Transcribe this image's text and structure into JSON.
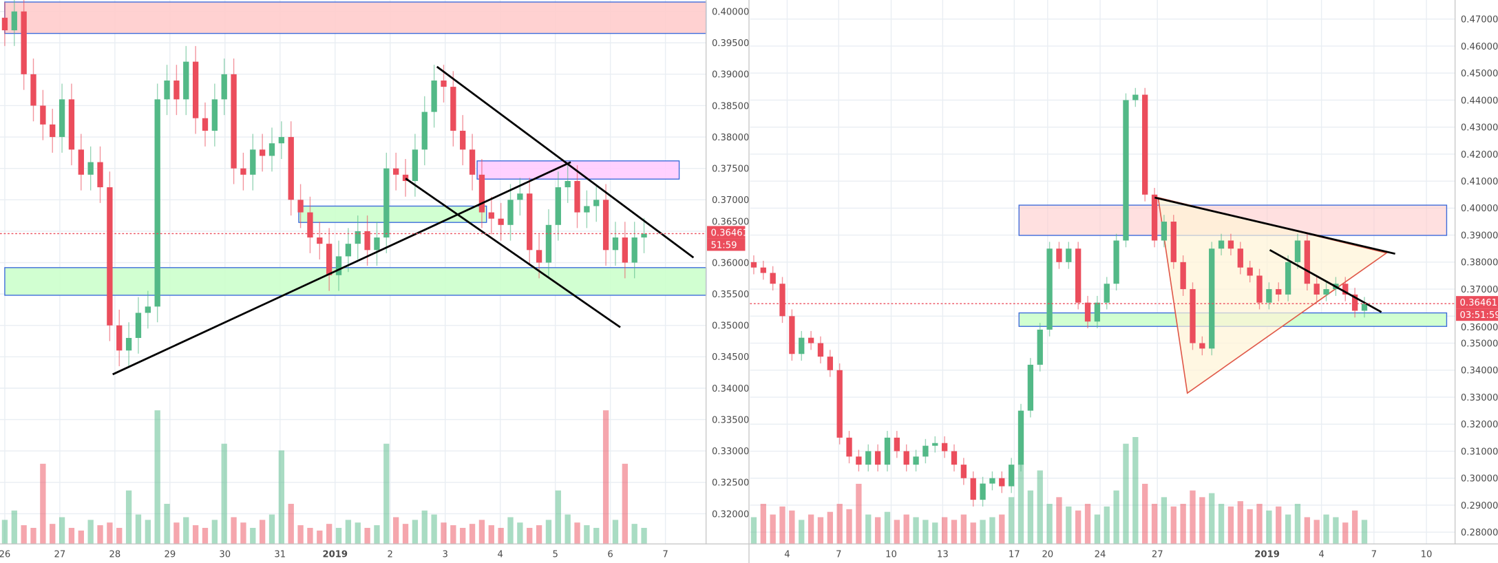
{
  "colors": {
    "up": "#53b987",
    "down": "#eb4d5c",
    "resistance_zone": "#ffcccc",
    "support_zone": "#ccffcc",
    "pink_zone": "#ffccff",
    "zone_border": "#3d6bdb",
    "trendline": "#000000",
    "price_line": "#eb4d5c",
    "triangle_fill": "#fff3d6",
    "triangle_edge": "#e05a4a"
  },
  "chart_data": [
    {
      "type": "candlestick",
      "y_ticks": [
        "0.40000",
        "0.39500",
        "0.39000",
        "0.38500",
        "0.38000",
        "0.37500",
        "0.37000",
        "0.36500",
        "0.36000",
        "0.35500",
        "0.35000",
        "0.34500",
        "0.34000",
        "0.33500",
        "0.33000",
        "0.32500",
        "0.32000"
      ],
      "ylim": [
        0.3155,
        0.4018
      ],
      "x_ticks": [
        "26",
        "27",
        "28",
        "29",
        "30",
        "31",
        "2019",
        "2",
        "3",
        "4",
        "5",
        "6",
        "7"
      ],
      "grid": true,
      "closes": [
        0.397,
        0.4,
        0.39,
        0.385,
        0.382,
        0.38,
        0.386,
        0.378,
        0.374,
        0.376,
        0.372,
        0.35,
        0.346,
        0.348,
        0.352,
        0.353,
        0.386,
        0.389,
        0.386,
        0.392,
        0.383,
        0.381,
        0.386,
        0.39,
        0.375,
        0.374,
        0.378,
        0.377,
        0.379,
        0.38,
        0.37,
        0.368,
        0.364,
        0.363,
        0.358,
        0.361,
        0.363,
        0.365,
        0.362,
        0.364,
        0.375,
        0.374,
        0.373,
        0.378,
        0.384,
        0.389,
        0.388,
        0.381,
        0.378,
        0.374,
        0.368,
        0.367,
        0.366,
        0.37,
        0.371,
        0.362,
        0.36,
        0.366,
        0.372,
        0.373,
        0.368,
        0.369,
        0.37,
        0.362,
        0.364,
        0.36,
        0.364,
        0.3646
      ],
      "volumes": [
        18,
        25,
        14,
        12,
        60,
        15,
        20,
        12,
        10,
        18,
        14,
        16,
        12,
        40,
        22,
        18,
        100,
        30,
        16,
        20,
        14,
        12,
        18,
        75,
        20,
        16,
        12,
        18,
        22,
        70,
        30,
        14,
        12,
        10,
        15,
        12,
        18,
        16,
        12,
        14,
        75,
        20,
        15,
        18,
        25,
        22,
        16,
        14,
        12,
        15,
        18,
        14,
        12,
        20,
        16,
        12,
        14,
        18,
        40,
        22,
        16,
        14,
        12,
        100,
        18,
        60,
        15,
        12
      ],
      "zones": [
        {
          "kind": "resistance",
          "from_day": 0,
          "to_day": 13,
          "top": 0.4015,
          "bottom": 0.3965
        },
        {
          "kind": "support",
          "from_day": 0,
          "to_day": 13,
          "top": 0.3592,
          "bottom": 0.3548
        },
        {
          "kind": "pink",
          "from_day": 8.58,
          "to_day": 12.25,
          "top": 0.3762,
          "bottom": 0.3733
        },
        {
          "kind": "support",
          "from_day": 5.34,
          "to_day": 8.75,
          "top": 0.369,
          "bottom": 0.3664
        }
      ],
      "trendlines": [
        [
          [
            1.96,
            0.3422
          ],
          [
            10.28,
            0.376
          ]
        ],
        [
          [
            7.28,
            0.3734
          ],
          [
            11.18,
            0.3497
          ]
        ],
        [
          [
            7.85,
            0.3912
          ],
          [
            12.51,
            0.3608
          ]
        ]
      ],
      "last_price": "0.36461",
      "last_price_value": 0.36461,
      "countdown": "51:59"
    },
    {
      "type": "candlestick",
      "y_ticks": [
        "0.47000",
        "0.46000",
        "0.45000",
        "0.44000",
        "0.43000",
        "0.42000",
        "0.41000",
        "0.40000",
        "0.39000",
        "0.38000",
        "0.37000",
        "0.36000",
        "0.35000",
        "0.34000",
        "0.33000",
        "0.32000",
        "0.31000",
        "0.30000",
        "0.29000",
        "0.28000"
      ],
      "ylim": [
        0.2735,
        0.4771
      ],
      "x_ticks": [
        "4",
        "7",
        "10",
        "13",
        "17",
        "20",
        "24",
        "27",
        "2019",
        "4",
        "7",
        "10"
      ],
      "grid": true,
      "closes": [
        0.378,
        0.376,
        0.372,
        0.36,
        0.346,
        0.352,
        0.35,
        0.345,
        0.34,
        0.315,
        0.308,
        0.305,
        0.31,
        0.305,
        0.315,
        0.31,
        0.305,
        0.308,
        0.312,
        0.313,
        0.31,
        0.305,
        0.3,
        0.292,
        0.298,
        0.3,
        0.297,
        0.305,
        0.325,
        0.342,
        0.355,
        0.385,
        0.38,
        0.385,
        0.365,
        0.358,
        0.365,
        0.372,
        0.388,
        0.44,
        0.442,
        0.405,
        0.388,
        0.395,
        0.38,
        0.37,
        0.35,
        0.348,
        0.385,
        0.388,
        0.385,
        0.378,
        0.375,
        0.365,
        0.37,
        0.368,
        0.38,
        0.388,
        0.372,
        0.368,
        0.37,
        0.372,
        0.368,
        0.362,
        0.3646
      ],
      "volumes": [
        20,
        30,
        22,
        28,
        25,
        18,
        22,
        20,
        24,
        30,
        26,
        45,
        22,
        20,
        24,
        18,
        22,
        20,
        18,
        16,
        20,
        18,
        22,
        16,
        18,
        20,
        22,
        35,
        60,
        40,
        55,
        30,
        35,
        28,
        25,
        30,
        22,
        28,
        40,
        75,
        80,
        45,
        30,
        35,
        28,
        30,
        40,
        35,
        38,
        30,
        28,
        32,
        26,
        30,
        25,
        28,
        22,
        30,
        20,
        18,
        22,
        20,
        16,
        25,
        18
      ],
      "zones": [
        {
          "kind": "resistance",
          "from_day": 13.5,
          "to_day": 38.4,
          "top": 0.4011,
          "bottom": 0.3899
        },
        {
          "kind": "support",
          "from_day": 13.5,
          "to_day": 38.4,
          "top": 0.3612,
          "bottom": 0.3562
        }
      ],
      "triangle": [
        [
          21.6,
          0.4039
        ],
        [
          23.3,
          0.3315
        ],
        [
          34.9,
          0.3834
        ]
      ],
      "trendlines": [
        [
          [
            21.4,
            0.4039
          ],
          [
            35.4,
            0.3831
          ]
        ],
        [
          [
            28.1,
            0.3845
          ],
          [
            34.6,
            0.3615
          ]
        ]
      ],
      "last_price": "0.36461",
      "last_price_value": 0.36461,
      "countdown": "03:51:59"
    }
  ]
}
